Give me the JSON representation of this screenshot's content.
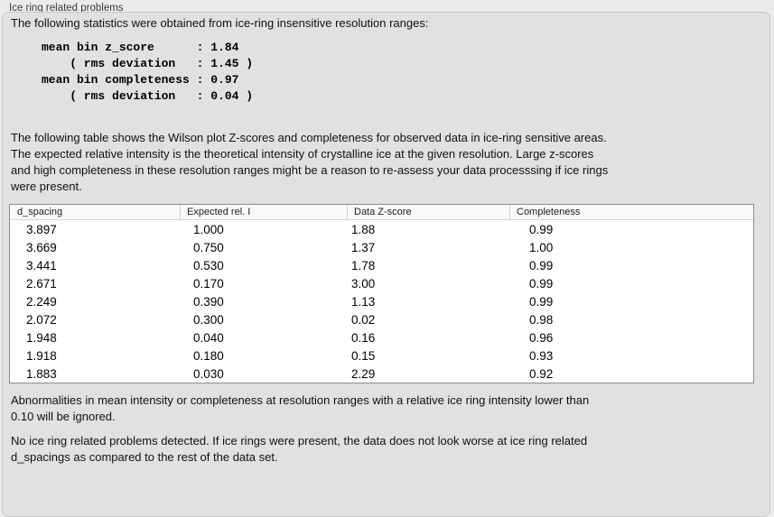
{
  "panel": {
    "title": "Ice ring related problems"
  },
  "intro": {
    "text": "The following statistics were obtained from ice-ring insensitive resolution ranges:"
  },
  "stats": {
    "text": "mean bin z_score      : 1.84\n    ( rms deviation   : 1.45 )\nmean bin completeness : 0.97\n    ( rms deviation   : 0.04 )",
    "mean_bin_z_score": "1.84",
    "z_score_rms_deviation": "1.45",
    "mean_bin_completeness": "0.97",
    "completeness_rms_deviation": "0.04"
  },
  "description": {
    "text": "The following table shows the Wilson plot Z-scores and completeness for observed data in ice-ring sensitive areas.\nThe expected relative intensity is the theoretical intensity of crystalline ice at the given resolution. Large z-scores\nand high completeness in these resolution ranges might be a reason to re-assess your data processsing if ice rings\nwere present."
  },
  "table": {
    "headers": [
      "d_spacing",
      "Expected rel. I",
      "Data Z-score",
      "Completeness"
    ],
    "rows": [
      [
        "3.897",
        "1.000",
        "1.88",
        "0.99"
      ],
      [
        "3.669",
        "0.750",
        "1.37",
        "1.00"
      ],
      [
        "3.441",
        "0.530",
        "1.78",
        "0.99"
      ],
      [
        "2.671",
        "0.170",
        "3.00",
        "0.99"
      ],
      [
        "2.249",
        "0.390",
        "1.13",
        "0.99"
      ],
      [
        "2.072",
        "0.300",
        "0.02",
        "0.98"
      ],
      [
        "1.948",
        "0.040",
        "0.16",
        "0.96"
      ],
      [
        "1.918",
        "0.180",
        "0.15",
        "0.93"
      ],
      [
        "1.883",
        "0.030",
        "2.29",
        "0.92"
      ]
    ]
  },
  "notes": {
    "ignore": "Abnormalities in mean intensity or completeness at resolution ranges with a relative ice ring intensity lower than\n0.10 will be ignored.",
    "conclusion": "No ice ring related problems detected. If ice rings were present, the data does not look worse at ice ring related\nd_spacings as compared to the rest of the data set."
  },
  "colors": {
    "outer_background": "#ebebeb",
    "panel_background": "#e2e1e1",
    "panel_border": "#c7c7c7",
    "table_border": "#8d8d8d",
    "table_header_background": "#fafafa",
    "text": "#141414"
  }
}
